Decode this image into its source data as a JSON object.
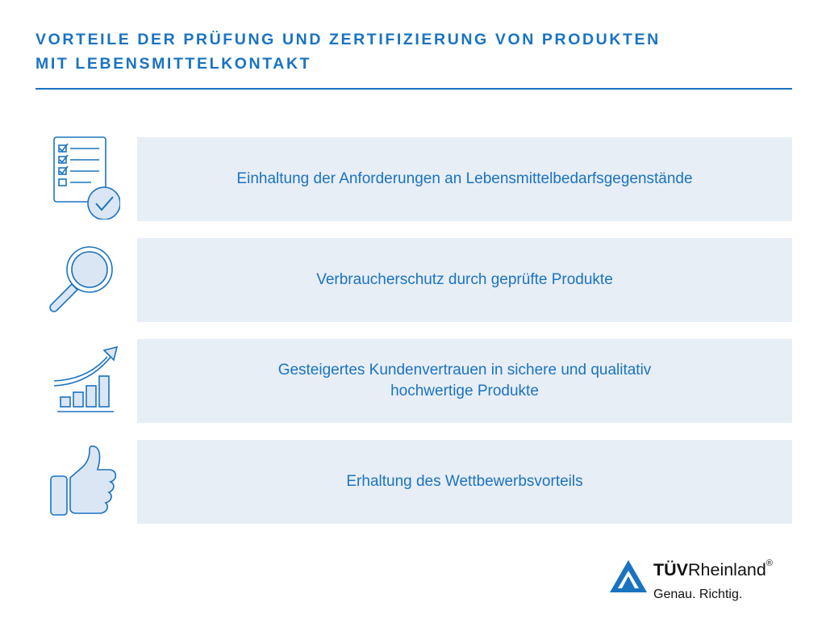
{
  "title_line1": "VORTEILE DER PRÜFUNG UND ZERTIFIZIERUNG VON PRODUKTEN",
  "title_line2": "MIT LEBENSMITTELKONTAKT",
  "rows": [
    {
      "icon": "checklist-icon",
      "line1": "Einhaltung der Anforderungen an Lebensmittelbedarfsgegenstände",
      "line2": ""
    },
    {
      "icon": "magnifier-icon",
      "line1": "Verbraucherschutz durch geprüfte Produkte",
      "line2": ""
    },
    {
      "icon": "growth-chart-icon",
      "line1": "Gesteigertes Kundenvertrauen in sichere und qualitativ",
      "line2": "hochwertige Produkte"
    },
    {
      "icon": "thumbs-up-icon",
      "line1": "Erhaltung des Wettbewerbsvorteils",
      "line2": ""
    }
  ],
  "logo": {
    "brand_bold": "TÜV",
    "brand_rest": "Rheinland",
    "registered": "®",
    "tagline": "Genau. Richtig."
  },
  "colors": {
    "accent": "#1a73c1",
    "box_background": "#e8eef6",
    "icon_fill": "#dbe6f4"
  }
}
